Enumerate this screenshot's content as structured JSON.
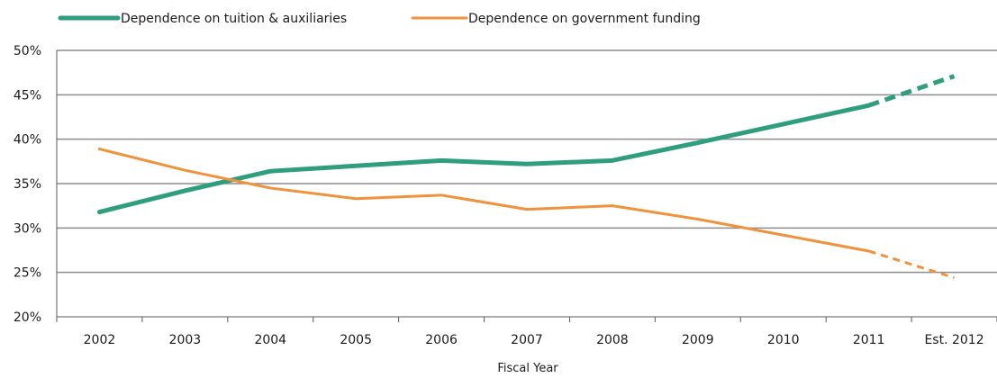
{
  "chart_data": {
    "type": "line",
    "categories": [
      "2002",
      "2003",
      "2004",
      "2005",
      "2006",
      "2007",
      "2008",
      "2009",
      "2010",
      "2011",
      "Est. 2012"
    ],
    "series": [
      {
        "name": "Dependence on tuition & auxiliaries",
        "color": "#2e9e7c",
        "values": [
          31.8,
          34.2,
          36.4,
          37.0,
          37.6,
          37.2,
          37.6,
          39.6,
          41.7,
          43.8,
          47.1
        ],
        "estimated_from_index": 9
      },
      {
        "name": "Dependence on government funding",
        "color": "#f0913c",
        "values": [
          38.9,
          36.5,
          34.5,
          33.3,
          33.7,
          32.1,
          32.5,
          31.0,
          29.2,
          27.4,
          24.4
        ],
        "estimated_from_index": 9
      }
    ],
    "xlabel": "Fiscal Year",
    "ylabel": "",
    "ylim": [
      20,
      50
    ],
    "yticks": [
      "20%",
      "25%",
      "30%",
      "35%",
      "40%",
      "45%",
      "50%"
    ],
    "grid": true,
    "legend_position": "top-left"
  }
}
